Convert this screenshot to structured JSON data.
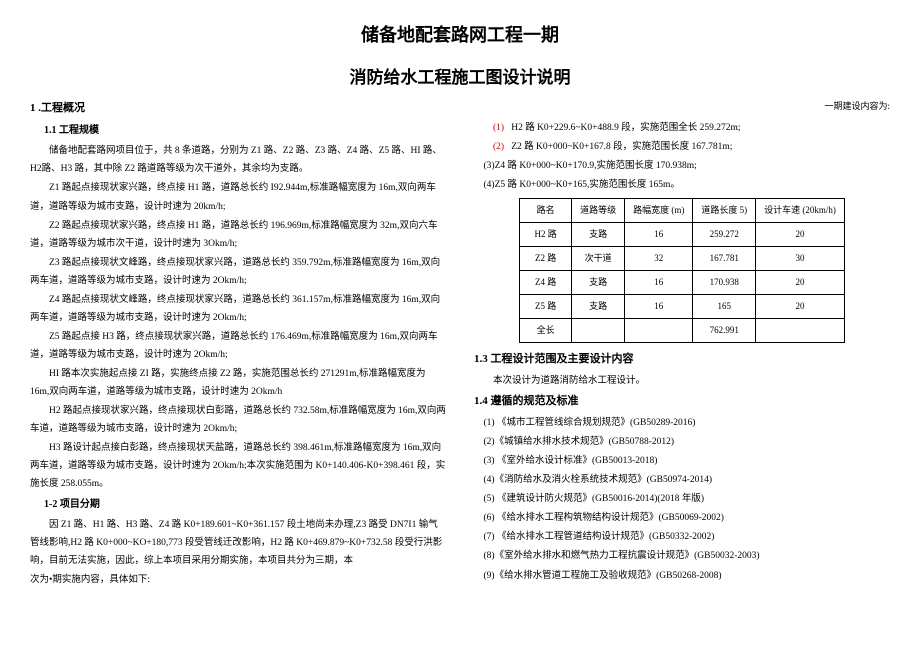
{
  "doc": {
    "main_title": "储备地配套路网工程一期",
    "sub_title": "消防给水工程施工图设计说明",
    "right_note": "一期建设内容为:"
  },
  "left": {
    "sec1": "1 .工程概况",
    "sec11": "1.1 工程规模",
    "p1": "储备地配套路网项目位于，共 8 条道路，分别为 Z1 路、Z2 路、Z3 路、Z4 路、Z5 路、HI 路、H2路、H3 路，其中除 Z2 路道路等级为次干道外，其余均为支路。",
    "p2": "Z1 路起点接现状家兴路，终点接 H1 路，道路总长约 I92.944m,标准路幅宽度为 16m,双向两车道，道路等级为城市支路，设计时速为 20km/h;",
    "p3": "Z2 路起点接现状家兴路，终点接 H1 路，道路总长约 196.969m,标准路幅宽度为 32m,双向六车道，道路等级为城市次干道，设计时速为 3Okm/h;",
    "p4": "Z3 路起点接现状文峰路，终点接现状家兴路，道路总长约 359.792m,标准路幅宽度为 16m,双向两车道，道路等级为城市支路，设计时速为 2Okm/h;",
    "p5": "Z4 路起点接现状文峰路，终点接现状家兴路，道路总长约 361.157m,标准路幅宽度为 16m,双向两车道，道路等级为城市支路，设计时速为 2Okm/h;",
    "p6": "Z5 路起点接 H3 路，终点接现状家兴路，道路总长约 176.469m,标准路幅宽度为 16m,双向两车道，道路等级为城市支路，设计时速为 2Okm/h;",
    "p7": "HI 路本次实施起点接 ZI 路，实施终点接 Z2 路，实施范围总长约 271291m,标准路幅宽度为 16m,双向两车道，道路等级为城市支路，设计时速为 2Okm/h",
    "p8": "H2 路起点接现状家兴路，终点接现状白彭路，道路总长约 732.58m,标准路幅宽度为 16m,双向两车道，道路等级为城市支路，设计时速为 2Okm/h;",
    "p9": "H3 路设计起点接白彭路，终点接现状天盐路，道路总长约 398.461m,标准路幅宽度为 16m,双向两车道，道路等级为城市支路，设计时速为 2Okm/h;本次实施范围为 K0+140.406-K0+398.461 段，实施长度 258.055m。",
    "sec12": "1-2 项目分期",
    "p10": "因 Z1 路、H1 路、H3 路、Z4 路 K0+189.601~K0+361.157 段土地尚未办理,Z3 路受 DN7I1 输气管线影响,H2 路 K0+000~KO+180,773 段受管线迁改影响，H2 路 K0+469.879~K0+732.58 段受行洪影响，目前无法实施，因此，综上本项目采用分期实施，本项目共分为三期，本",
    "p11": "次为•期实施内容，具体如下:"
  },
  "right": {
    "i1a": "(1)",
    "i1b": "H2 路 K0+229.6~K0+488.9 段，实施范围全长 259.272m;",
    "i2a": "(2)",
    "i2b": "Z2 路 K0+000~K0+167.8 段，实施范围长度 167.781m;",
    "i3": "(3)Z4 路 K0+000~K0+170.9,实施范围长度 170.938m;",
    "i4": "(4)Z5 路 K0+000~K0+165,实施范围长度 165m。",
    "table": {
      "headers": [
        "路名",
        "道路等级",
        "路幅宽度\n(m)",
        "道路长度 5)",
        "设计车速\n(20km/h)"
      ],
      "rows": [
        [
          "H2 路",
          "支路",
          "16",
          "259.272",
          "20"
        ],
        [
          "Z2 路",
          "次干道",
          "32",
          "167.781",
          "30"
        ],
        [
          "Z4 路",
          "支路",
          "16",
          "170.938",
          "20"
        ],
        [
          "Z5 路",
          "支路",
          "16",
          "165",
          "20"
        ],
        [
          "全长",
          "",
          "",
          "762.991",
          ""
        ]
      ]
    },
    "sec13": "1.3 工程设计范围及主要设计内容",
    "p13": "本次设计为道路消防给水工程设计。",
    "sec14": "1.4 遵循的规范及标准",
    "s1": "(1) 《城市工程管线综合规划规范》(GB50289-2016)",
    "s2": "(2)《城镇给水排水技术规范》(GB50788-2012)",
    "s3": "(3) 《室外给水设计标准》(GB50013-2018)",
    "s4": "(4)《消防给水及消火栓系统技术规范》(GB50974-2014)",
    "s5": "(5) 《建筑设计防火规范》(GB50016-2014)(2018 年版)",
    "s6": "(6) 《给水排水工程构筑物结构设计规范》(GB50069-2002)",
    "s7": "(7) 《给水排水工程管道结构设计规范》(GB50332-2002)",
    "s8": "(8)《室外给水排水和燃气热力工程抗震设计规范》(GB50032-2003)",
    "s9": "(9)《给水排水管道工程施工及验收规范》(GB50268-2008)"
  }
}
